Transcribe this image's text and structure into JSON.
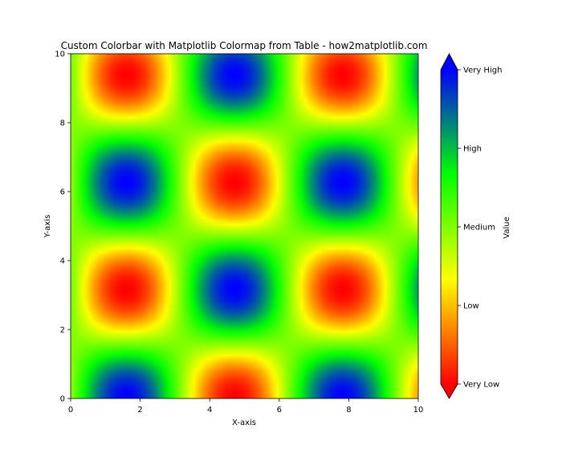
{
  "chart_data": {
    "type": "heatmap",
    "title": "Custom Colorbar with Matplotlib Colormap from Table - how2matplotlib.com",
    "xlabel": "X-axis",
    "ylabel": "Y-axis",
    "xlim": [
      0,
      10
    ],
    "ylim": [
      0,
      10
    ],
    "x_ticks": [
      0,
      2,
      4,
      6,
      8,
      10
    ],
    "y_ticks": [
      0,
      2,
      4,
      6,
      8,
      10
    ],
    "function": "sin(x) * cos(y)",
    "grid": false,
    "colorbar": {
      "label": "Value",
      "range": [
        -1,
        1
      ],
      "extend": "both",
      "colormap": [
        "#ff0000",
        "#ffff00",
        "#00ff00",
        "#0000ff"
      ],
      "ticks": [
        {
          "value": -1.0,
          "label": "Very Low"
        },
        {
          "value": -0.5,
          "label": "Low"
        },
        {
          "value": 0.0,
          "label": "Medium"
        },
        {
          "value": 0.5,
          "label": "High"
        },
        {
          "value": 1.0,
          "label": "Very High"
        }
      ]
    }
  }
}
